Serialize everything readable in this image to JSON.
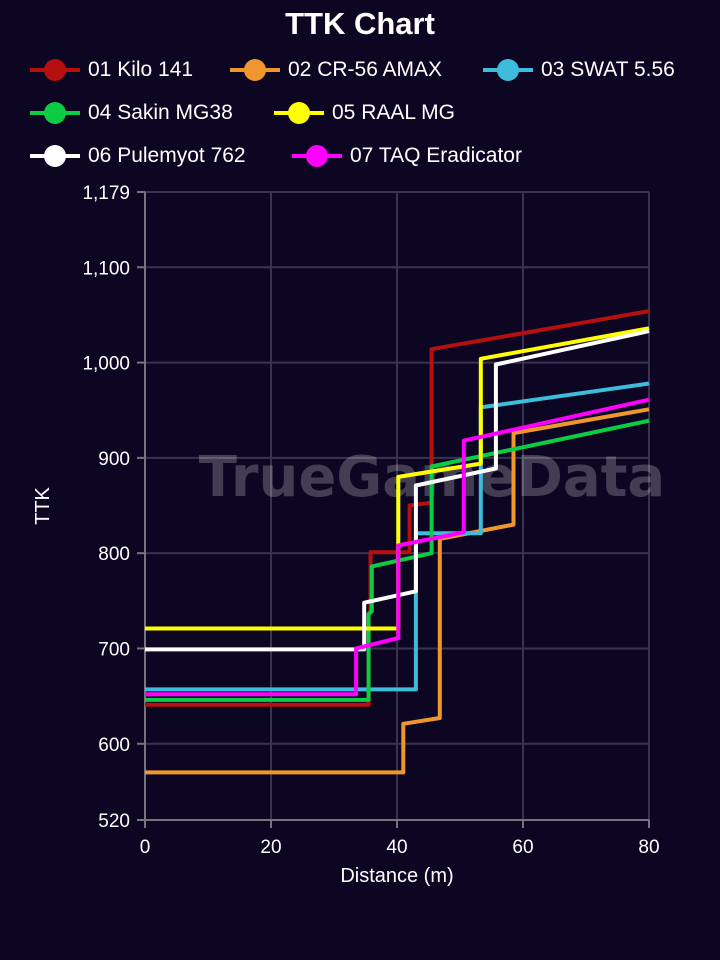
{
  "chart_data": {
    "type": "line",
    "title": "TTK Chart",
    "xlabel": "Distance (m)",
    "ylabel": "TTK",
    "xlim": [
      0,
      80
    ],
    "ylim": [
      520,
      1179
    ],
    "x_ticks": [
      0,
      20,
      40,
      60,
      80
    ],
    "x_tick_labels": [
      "0",
      "20",
      "40",
      "60",
      "80"
    ],
    "y_ticks": [
      520,
      600,
      700,
      800,
      900,
      1000,
      1100,
      1179
    ],
    "y_tick_labels": [
      "520",
      "600",
      "700",
      "800",
      "900",
      "1,000",
      "1,100",
      "1,179"
    ],
    "grid": true,
    "legend_position": "top",
    "watermark": "TrueGameData",
    "series": [
      {
        "name": "01 Kilo 141",
        "color": "#b5100f",
        "points": [
          [
            0,
            641
          ],
          [
            35.5,
            641
          ],
          [
            35.5,
            736
          ],
          [
            35.8,
            740
          ],
          [
            35.8,
            801
          ],
          [
            42,
            801
          ],
          [
            42,
            850
          ],
          [
            45.5,
            853
          ],
          [
            45.5,
            1014
          ],
          [
            80,
            1054
          ]
        ]
      },
      {
        "name": "02 CR-56 AMAX",
        "color": "#f0962e",
        "points": [
          [
            0,
            570
          ],
          [
            41,
            570
          ],
          [
            41,
            621
          ],
          [
            46.8,
            627
          ],
          [
            46.8,
            815
          ],
          [
            58.5,
            830
          ],
          [
            58.5,
            926
          ],
          [
            80,
            951
          ]
        ]
      },
      {
        "name": "03 SWAT 5.56",
        "color": "#3dbcdc",
        "points": [
          [
            0,
            657
          ],
          [
            43,
            657
          ],
          [
            43,
            821
          ],
          [
            53.3,
            821
          ],
          [
            53.3,
            953
          ],
          [
            80,
            978
          ]
        ]
      },
      {
        "name": "04 Sakin MG38",
        "color": "#0ccc44",
        "points": [
          [
            0,
            646
          ],
          [
            35.5,
            646
          ],
          [
            35.5,
            736
          ],
          [
            36,
            739
          ],
          [
            36,
            786
          ],
          [
            45.5,
            800
          ],
          [
            45.5,
            891
          ],
          [
            80,
            939
          ]
        ]
      },
      {
        "name": "05 RAAL MG",
        "color": "#ffff00",
        "points": [
          [
            0,
            721
          ],
          [
            40.2,
            721
          ],
          [
            40.2,
            880
          ],
          [
            53.3,
            894
          ],
          [
            53.3,
            1004
          ],
          [
            80,
            1036
          ]
        ]
      },
      {
        "name": "06 Pulemyot 762",
        "color": "#ffffff",
        "points": [
          [
            0,
            699
          ],
          [
            34.8,
            699
          ],
          [
            34.8,
            748
          ],
          [
            43,
            760
          ],
          [
            43,
            871
          ],
          [
            55.7,
            889
          ],
          [
            55.7,
            998
          ],
          [
            80,
            1033
          ]
        ]
      },
      {
        "name": "07 TAQ Eradicator",
        "color": "#ff00ff",
        "points": [
          [
            0,
            652
          ],
          [
            33.5,
            652
          ],
          [
            33.5,
            700
          ],
          [
            40.2,
            711
          ],
          [
            40.2,
            808
          ],
          [
            50.6,
            822
          ],
          [
            50.6,
            918
          ],
          [
            80,
            961
          ]
        ]
      }
    ]
  },
  "legend": [
    {
      "label": "01 Kilo 141",
      "color": "#b5100f"
    },
    {
      "label": "02 CR-56 AMAX",
      "color": "#f0962e"
    },
    {
      "label": "03 SWAT 5.56",
      "color": "#3dbcdc"
    },
    {
      "label": "04 Sakin MG38",
      "color": "#0ccc44"
    },
    {
      "label": "05 RAAL MG",
      "color": "#ffff00"
    },
    {
      "label": "06 Pulemyot 762",
      "color": "#ffffff"
    },
    {
      "label": "07 TAQ Eradicator",
      "color": "#ff00ff"
    }
  ]
}
